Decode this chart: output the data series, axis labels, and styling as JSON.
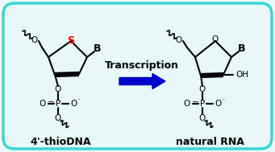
{
  "background_color": "#e8f8f8",
  "border_color": "#3dd4d4",
  "title_text": "Transcription",
  "label_left": "4'-thioDNA",
  "label_right": "natural RNA",
  "arrow_color": "#0000cc",
  "sulfur_color": "#ff0000",
  "line_color": "#000000",
  "fig_width": 3.41,
  "fig_height": 1.89,
  "dpi": 100
}
